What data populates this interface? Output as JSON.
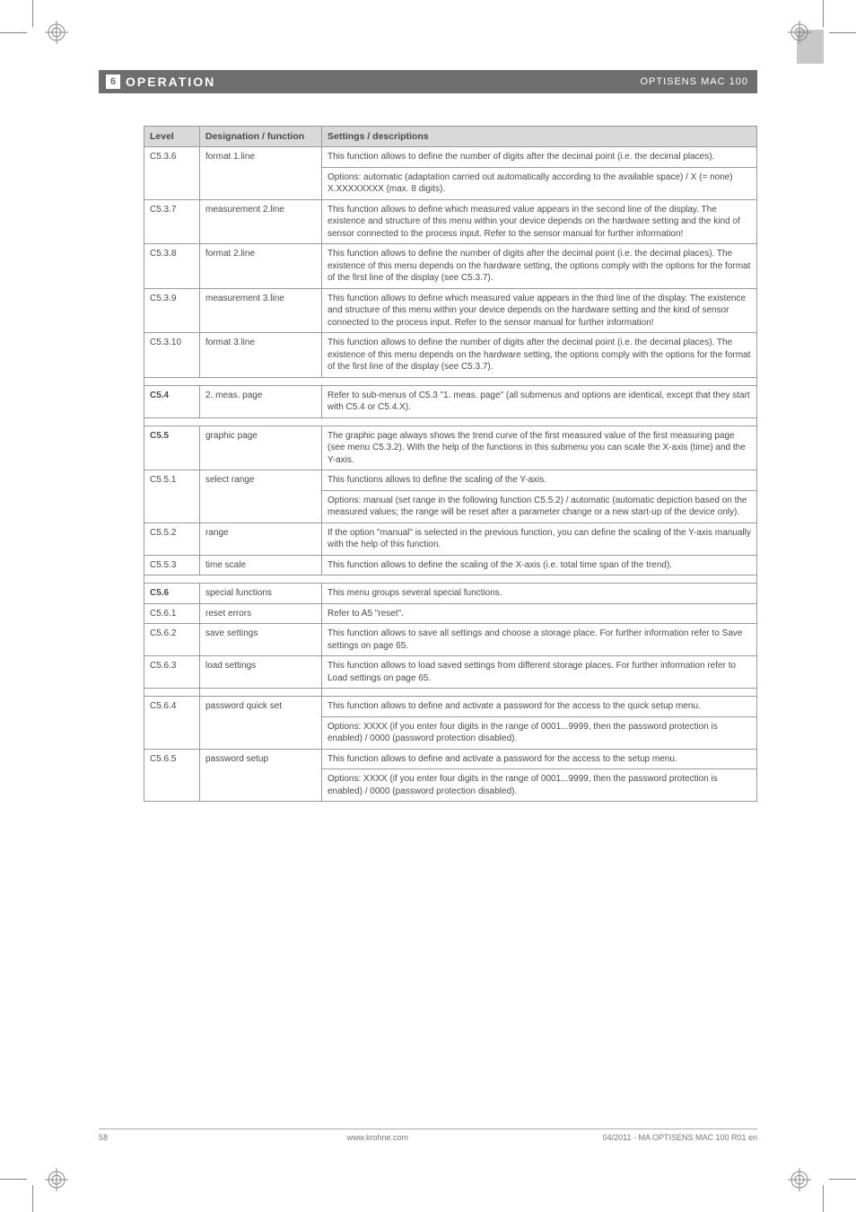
{
  "header": {
    "section_num": "6",
    "title": "OPERATION",
    "product": "OPTISENS MAC 100"
  },
  "table": {
    "headers": {
      "level": "Level",
      "desig": "Designation / function",
      "settings": "Settings / descriptions"
    },
    "rows": [
      {
        "level": "C5.3.6",
        "desig": "format 1.line",
        "cells": [
          "This function allows to define the number of digits after the decimal point (i.e. the decimal places).",
          "Options: automatic (adaptation carried out automatically according to the available space) / X (= none)   X.XXXXXXXX (max. 8 digits)."
        ]
      },
      {
        "level": "C5.3.7",
        "desig": "measurement 2.line",
        "cells": [
          "This function allows to define which measured value appears in the second line of the display. The existence and structure of this menu within your device depends on the hardware setting and the kind of sensor connected to the process input. Refer to the sensor manual for further information!"
        ]
      },
      {
        "level": "C5.3.8",
        "desig": "format 2.line",
        "cells": [
          "This function allows to define the number of digits after the decimal point (i.e. the decimal places). The existence of this menu depends on the hardware setting, the options comply with the options for the format of the first line of the display (see C5.3.7)."
        ]
      },
      {
        "level": "C5.3.9",
        "desig": "measurement 3.line",
        "cells": [
          "This function allows to define which measured value appears in the third line of the display. The existence and structure of this menu within your device depends on the hardware setting and the kind of sensor connected to the process input. Refer to the sensor manual for further information!"
        ]
      },
      {
        "level": "C5.3.10",
        "desig": "format 3.line",
        "cells": [
          "This function allows to define the number of digits after the decimal point (i.e. the decimal places). The existence of this menu depends on the hardware setting, the options comply with the options for the format of the first line of the display (see C5.3.7)."
        ]
      },
      {
        "spacer": true
      },
      {
        "level": "C5.4",
        "bold": true,
        "desig": "2. meas. page",
        "cells": [
          "Refer to sub-menus of C5.3 \"1. meas. page\" (all submenus and options are identical, except that they start with C5.4 or C5.4.X)."
        ]
      },
      {
        "spacer": true
      },
      {
        "level": "C5.5",
        "bold": true,
        "desig": "graphic page",
        "cells": [
          "The graphic page always shows the trend curve of the first measured value of the first measuring page (see menu C5.3.2). With the help of the functions in this submenu you can scale the X-axis (time) and the Y-axis."
        ]
      },
      {
        "level": "C5.5.1",
        "desig": "select range",
        "cells": [
          "This functions allows to define the scaling of the Y-axis.",
          "Options: manual (set range in the following function C5.5.2) / automatic (automatic depiction based on the measured values; the range will be reset after a parameter change or a new start-up of the device only)."
        ]
      },
      {
        "level": "C5.5.2",
        "desig": "range",
        "cells": [
          "If the option \"manual\" is selected in the previous function, you can define the scaling of the Y-axis manually with the help of this function."
        ]
      },
      {
        "level": "C5.5.3",
        "desig": "time scale",
        "cells": [
          "This function allows to define the scaling of the X-axis (i.e. total time span of the trend)."
        ]
      },
      {
        "spacer": true
      },
      {
        "level": "C5.6",
        "bold": true,
        "desig": "special functions",
        "cells": [
          "This menu groups several special functions."
        ]
      },
      {
        "level": "C5.6.1",
        "desig": "reset errors",
        "cells": [
          "Refer to A5 \"reset\"."
        ]
      },
      {
        "level": "C5.6.2",
        "desig": "save settings",
        "cells": [
          "This function allows to save all settings and choose a storage place. For further information refer to Save settings on page 65."
        ]
      },
      {
        "level": "C5.6.3",
        "desig": "load settings",
        "cells": [
          "This function allows to load saved settings from different storage places. For further information refer to Load settings on page 65."
        ]
      },
      {
        "spacer_inner": true
      },
      {
        "level": "C5.6.4",
        "desig": "password quick set",
        "cells": [
          "This function allows to define and activate a password for the access to the quick setup menu.",
          "Options: XXXX (if you enter four digits in the range of 0001...9999, then the password protection is enabled) / 0000 (password protection disabled)."
        ]
      },
      {
        "level": "C5.6.5",
        "desig": "password setup",
        "cells": [
          "This function allows to define and activate a password for the access to the setup menu.",
          "Options: XXXX (if you enter four digits in the range of 0001...9999, then the password protection is enabled) / 0000 (password protection disabled)."
        ]
      }
    ]
  },
  "footer": {
    "page": "58",
    "site": "www.krohne.com",
    "doc": "04/2011 - MA OPTISENS MAC 100 R01 en"
  }
}
